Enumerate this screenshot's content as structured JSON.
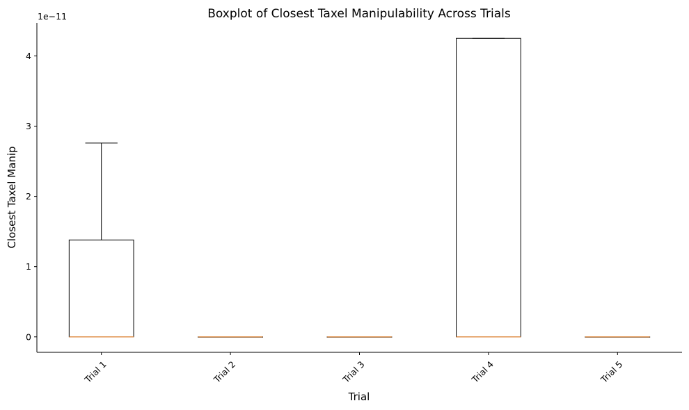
{
  "chart_data": {
    "type": "boxplot",
    "title": "Boxplot of Closest Taxel Manipulability Across Trials",
    "xlabel": "Trial",
    "ylabel": "Closest Taxel Manip",
    "y_offset_label": "1e−11",
    "y_scale": 1e-11,
    "ylim": [
      -0.22,
      4.47
    ],
    "yticks": [
      0,
      1,
      2,
      3,
      4
    ],
    "grid": false,
    "categories": [
      "Trial 1",
      "Trial 2",
      "Trial 3",
      "Trial 4",
      "Trial 5"
    ],
    "boxes": [
      {
        "whisker_low": 0,
        "q1": 0,
        "median": 0,
        "q3": 1.38,
        "whisker_high": 2.76
      },
      {
        "whisker_low": 0,
        "q1": 0,
        "median": 0,
        "q3": 0,
        "whisker_high": 0
      },
      {
        "whisker_low": 0,
        "q1": 0,
        "median": 0,
        "q3": 0,
        "whisker_high": 0
      },
      {
        "whisker_low": 0,
        "q1": 0,
        "median": 0,
        "q3": 4.25,
        "whisker_high": 4.25
      },
      {
        "whisker_low": 0,
        "q1": 0,
        "median": 0,
        "q3": 0,
        "whisker_high": 0
      }
    ],
    "colors": {
      "box": "#000000",
      "median": "#e0904a",
      "axis": "#000000"
    }
  }
}
